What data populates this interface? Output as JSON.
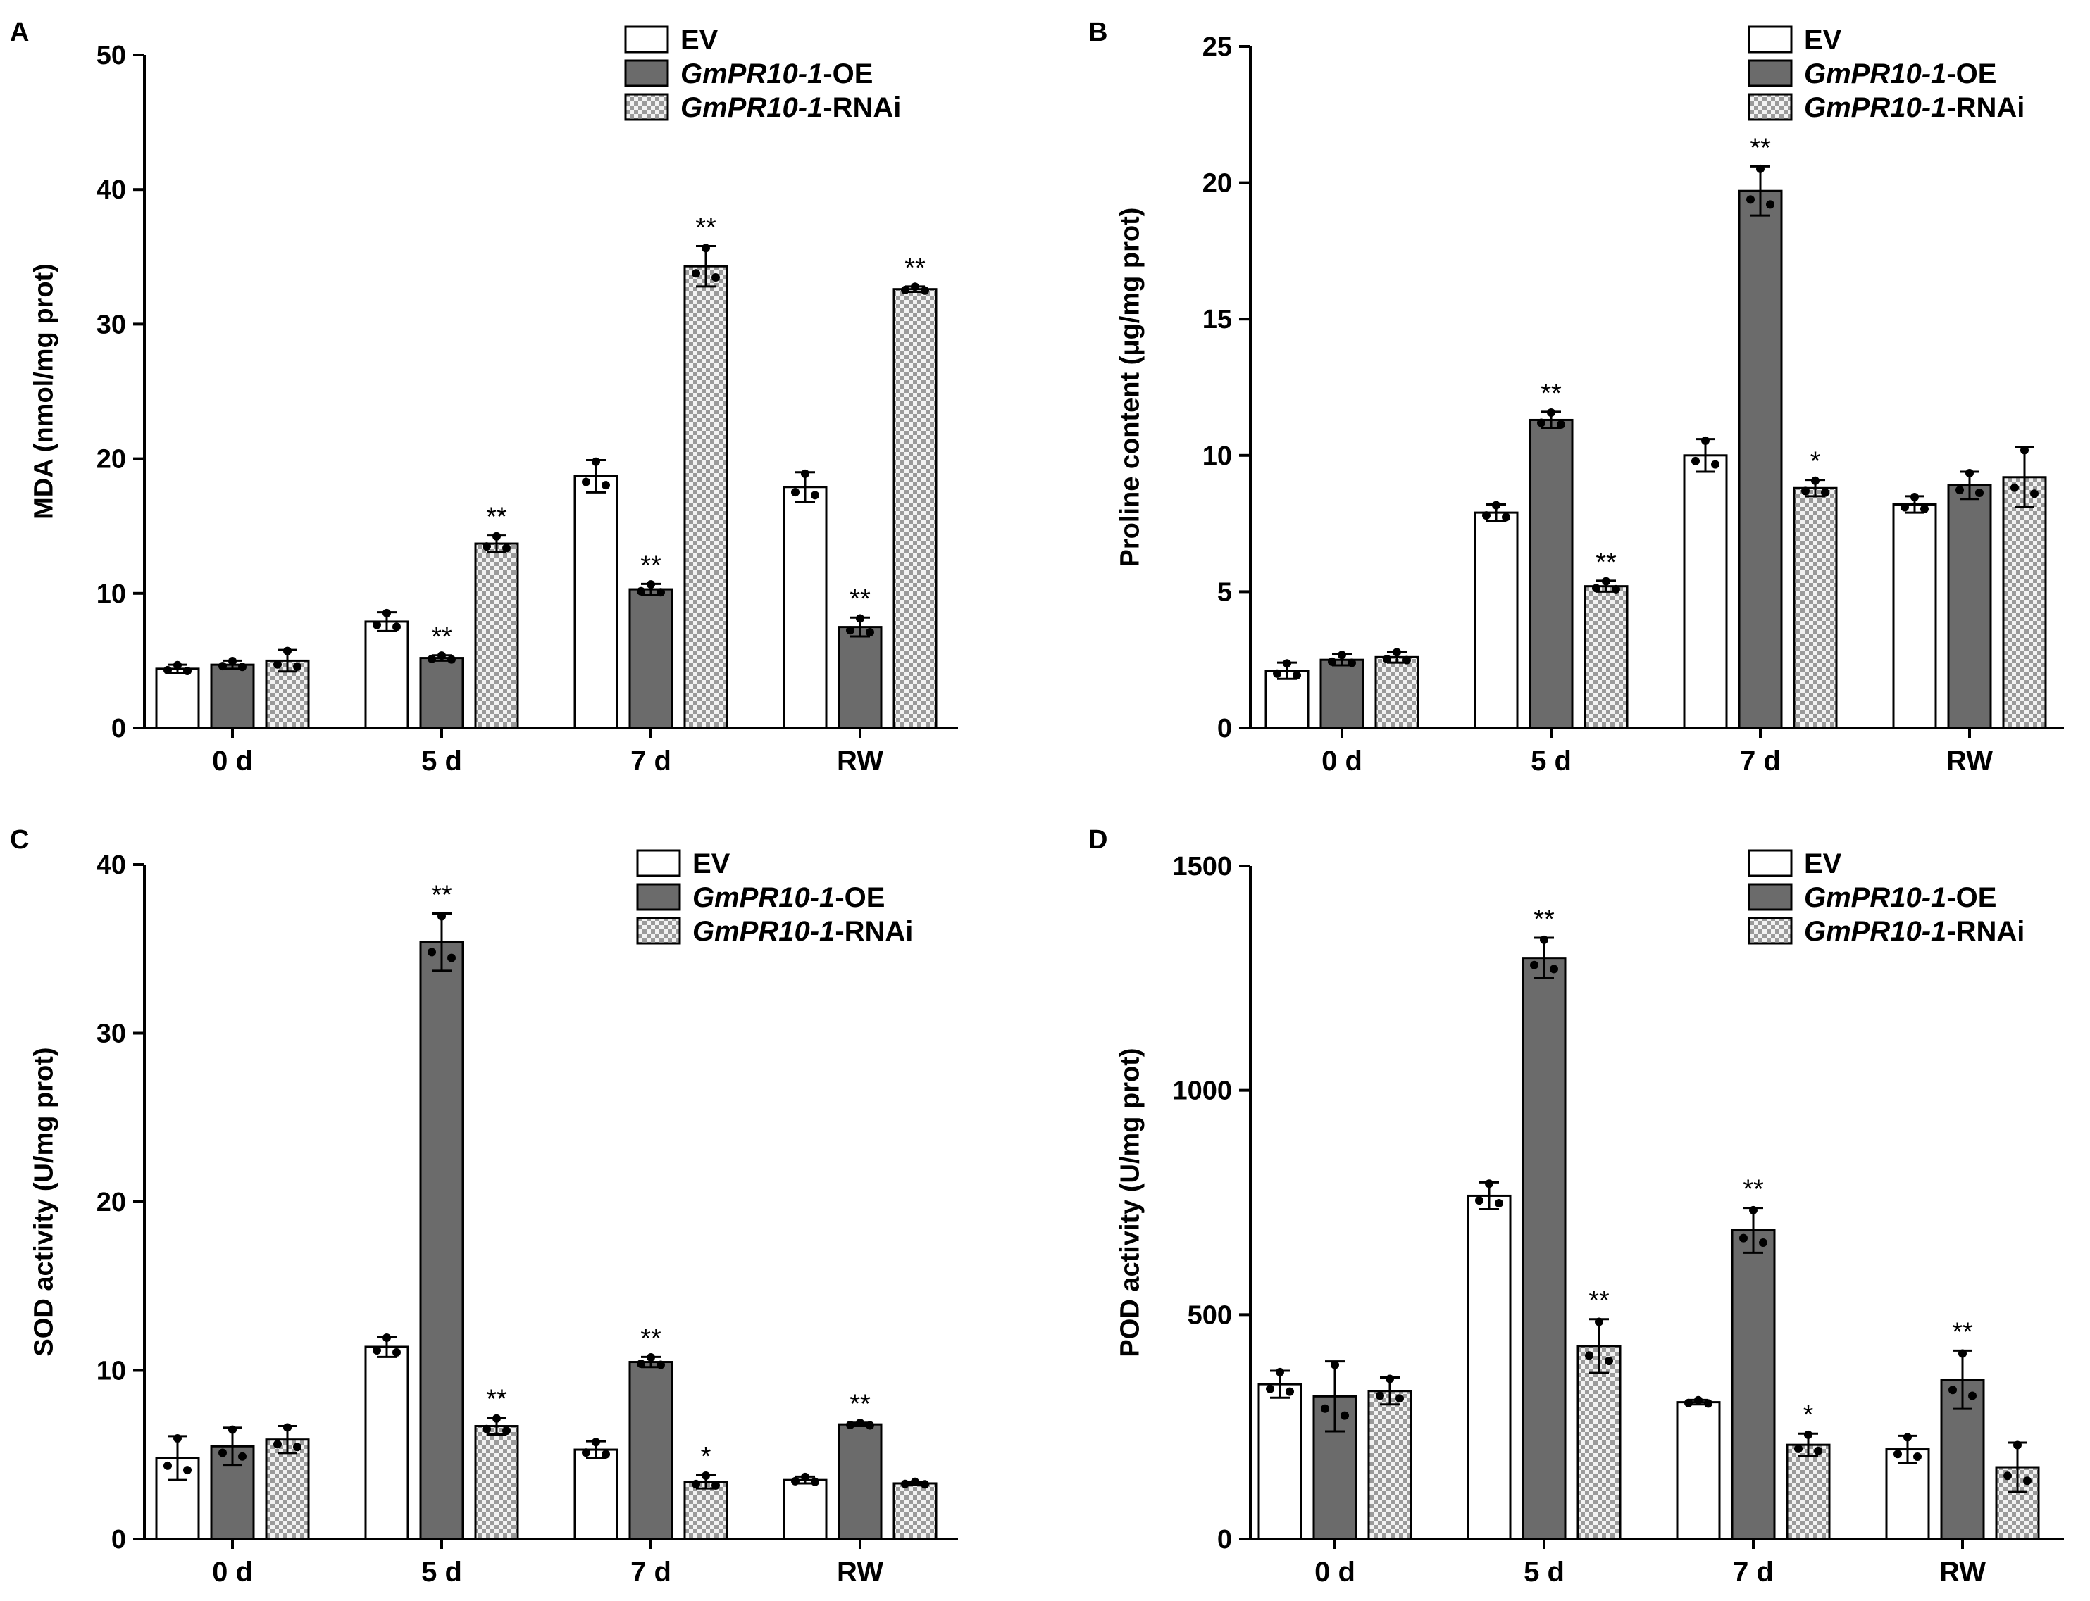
{
  "colors": {
    "ev": "#ffffff",
    "oe": "#6b6b6b",
    "rnai_light": "#f2f2f2",
    "rnai_dark": "#9a9a9a",
    "axis": "#000000"
  },
  "legend": [
    {
      "gene": "GmPR10-1",
      "suffix": "",
      "label": "EV"
    },
    {
      "gene": "GmPR10-1",
      "suffix": "-OE",
      "label": "GmPR10-1-OE"
    },
    {
      "gene": "GmPR10-1",
      "suffix": "-RNAi",
      "label": "GmPR10-1-RNAi"
    }
  ],
  "chart_data": [
    {
      "panel": "A",
      "type": "bar",
      "ylabel": "MDA (nmol/mg prot)",
      "ylim": [
        0,
        50
      ],
      "yticks": [
        0,
        10,
        20,
        30,
        40,
        50
      ],
      "categories": [
        "0 d",
        "5 d",
        "7 d",
        "RW"
      ],
      "legend_position": "top-right",
      "series": [
        {
          "name": "EV",
          "values": [
            4.4,
            7.9,
            18.7,
            17.9
          ],
          "errors": [
            0.3,
            0.7,
            1.2,
            1.1
          ],
          "stars": [
            "",
            "",
            "",
            ""
          ]
        },
        {
          "name": "GmPR10-1-OE",
          "values": [
            4.7,
            5.2,
            10.3,
            7.5
          ],
          "errors": [
            0.3,
            0.2,
            0.4,
            0.7
          ],
          "stars": [
            "",
            "**",
            "**",
            "**"
          ]
        },
        {
          "name": "GmPR10-1-RNAi",
          "values": [
            5.0,
            13.7,
            34.3,
            32.6
          ],
          "errors": [
            0.8,
            0.6,
            1.5,
            0.2
          ],
          "stars": [
            "",
            "**",
            "**",
            "**"
          ]
        }
      ]
    },
    {
      "panel": "B",
      "type": "bar",
      "ylabel": "Proline content (μg/mg prot)",
      "ylim": [
        0,
        25
      ],
      "yticks": [
        0,
        5,
        10,
        15,
        20,
        25
      ],
      "categories": [
        "0 d",
        "5 d",
        "7 d",
        "RW"
      ],
      "legend_position": "top-right",
      "series": [
        {
          "name": "EV",
          "values": [
            2.1,
            7.9,
            10.0,
            8.2
          ],
          "errors": [
            0.3,
            0.3,
            0.6,
            0.3
          ],
          "stars": [
            "",
            "",
            "",
            ""
          ]
        },
        {
          "name": "GmPR10-1-OE",
          "values": [
            2.5,
            11.3,
            19.7,
            8.9
          ],
          "errors": [
            0.2,
            0.3,
            0.9,
            0.5
          ],
          "stars": [
            "",
            "**",
            "**",
            ""
          ]
        },
        {
          "name": "GmPR10-1-RNAi",
          "values": [
            2.6,
            5.2,
            8.8,
            9.2
          ],
          "errors": [
            0.2,
            0.2,
            0.3,
            1.1
          ],
          "stars": [
            "",
            "**",
            "*",
            ""
          ]
        }
      ]
    },
    {
      "panel": "C",
      "type": "bar",
      "ylabel": "SOD activity (U/mg prot)",
      "ylim": [
        0,
        40
      ],
      "yticks": [
        0,
        10,
        20,
        30,
        40
      ],
      "categories": [
        "0 d",
        "5 d",
        "7 d",
        "RW"
      ],
      "legend_position": "top-right",
      "series": [
        {
          "name": "EV",
          "values": [
            4.8,
            11.4,
            5.3,
            3.5
          ],
          "errors": [
            1.3,
            0.6,
            0.5,
            0.2
          ],
          "stars": [
            "",
            "",
            "",
            ""
          ]
        },
        {
          "name": "GmPR10-1-OE",
          "values": [
            5.5,
            35.4,
            10.5,
            6.8
          ],
          "errors": [
            1.1,
            1.7,
            0.3,
            0.1
          ],
          "stars": [
            "",
            "**",
            "**",
            "**"
          ]
        },
        {
          "name": "GmPR10-1-RNAi",
          "values": [
            5.9,
            6.7,
            3.4,
            3.3
          ],
          "errors": [
            0.8,
            0.5,
            0.4,
            0.1
          ],
          "stars": [
            "",
            "**",
            "*",
            ""
          ]
        }
      ]
    },
    {
      "panel": "D",
      "type": "bar",
      "ylabel": "POD activity (U/mg prot)",
      "ylim": [
        0,
        1500
      ],
      "yticks": [
        0,
        500,
        1000,
        1500
      ],
      "categories": [
        "0 d",
        "5 d",
        "7 d",
        "RW"
      ],
      "legend_position": "top-right",
      "series": [
        {
          "name": "EV",
          "values": [
            345,
            765,
            305,
            200
          ],
          "errors": [
            30,
            30,
            5,
            30
          ],
          "stars": [
            "",
            "",
            "",
            ""
          ]
        },
        {
          "name": "GmPR10-1-OE",
          "values": [
            318,
            1295,
            688,
            355
          ],
          "errors": [
            78,
            45,
            50,
            65
          ],
          "stars": [
            "",
            "**",
            "**",
            "**"
          ]
        },
        {
          "name": "GmPR10-1-RNAi",
          "values": [
            330,
            430,
            210,
            160
          ],
          "errors": [
            30,
            60,
            25,
            55
          ],
          "stars": [
            "",
            "**",
            "*",
            ""
          ]
        }
      ]
    }
  ]
}
